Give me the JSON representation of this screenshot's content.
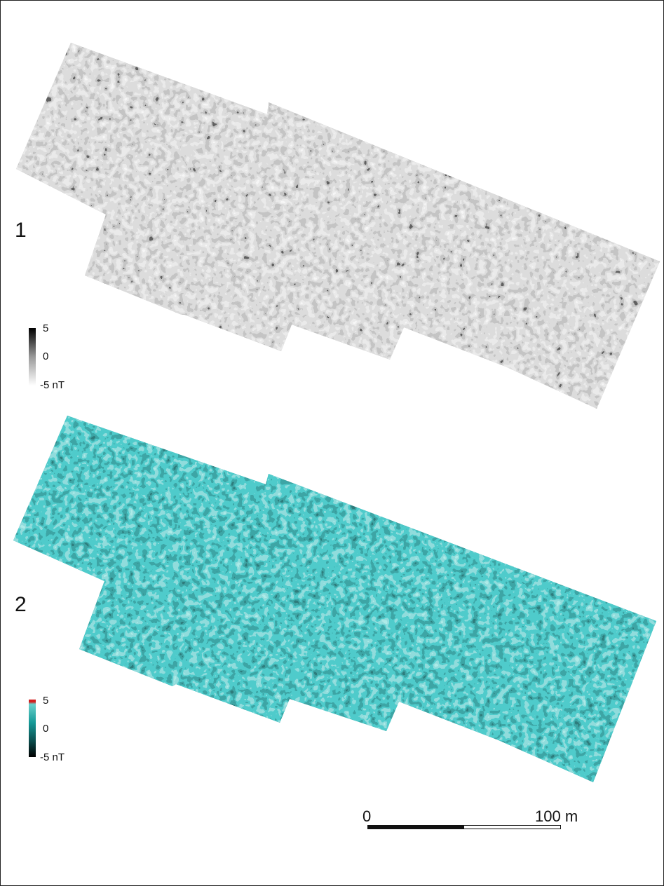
{
  "panels": [
    {
      "label": "1",
      "palette": "grayscale",
      "legend": {
        "max": "5",
        "mid": "0",
        "min": "-5 nT"
      },
      "colors": {
        "high": "#000000",
        "mid": "#999999",
        "low": "#ffffff",
        "background_tone": "#b8b8b8"
      }
    },
    {
      "label": "2",
      "palette": "teal-black-red",
      "legend": {
        "max": "5",
        "mid": "0",
        "min": "-5 nT"
      },
      "colors": {
        "high": "#d21e1e",
        "upper": "#6ad0cc",
        "mid": "#159a98",
        "lower": "#0b5252",
        "low": "#000000"
      }
    }
  ],
  "scale_bar": {
    "start_label": "0",
    "end_label": "100 m",
    "colors": [
      "#111111",
      "#ffffff"
    ]
  }
}
